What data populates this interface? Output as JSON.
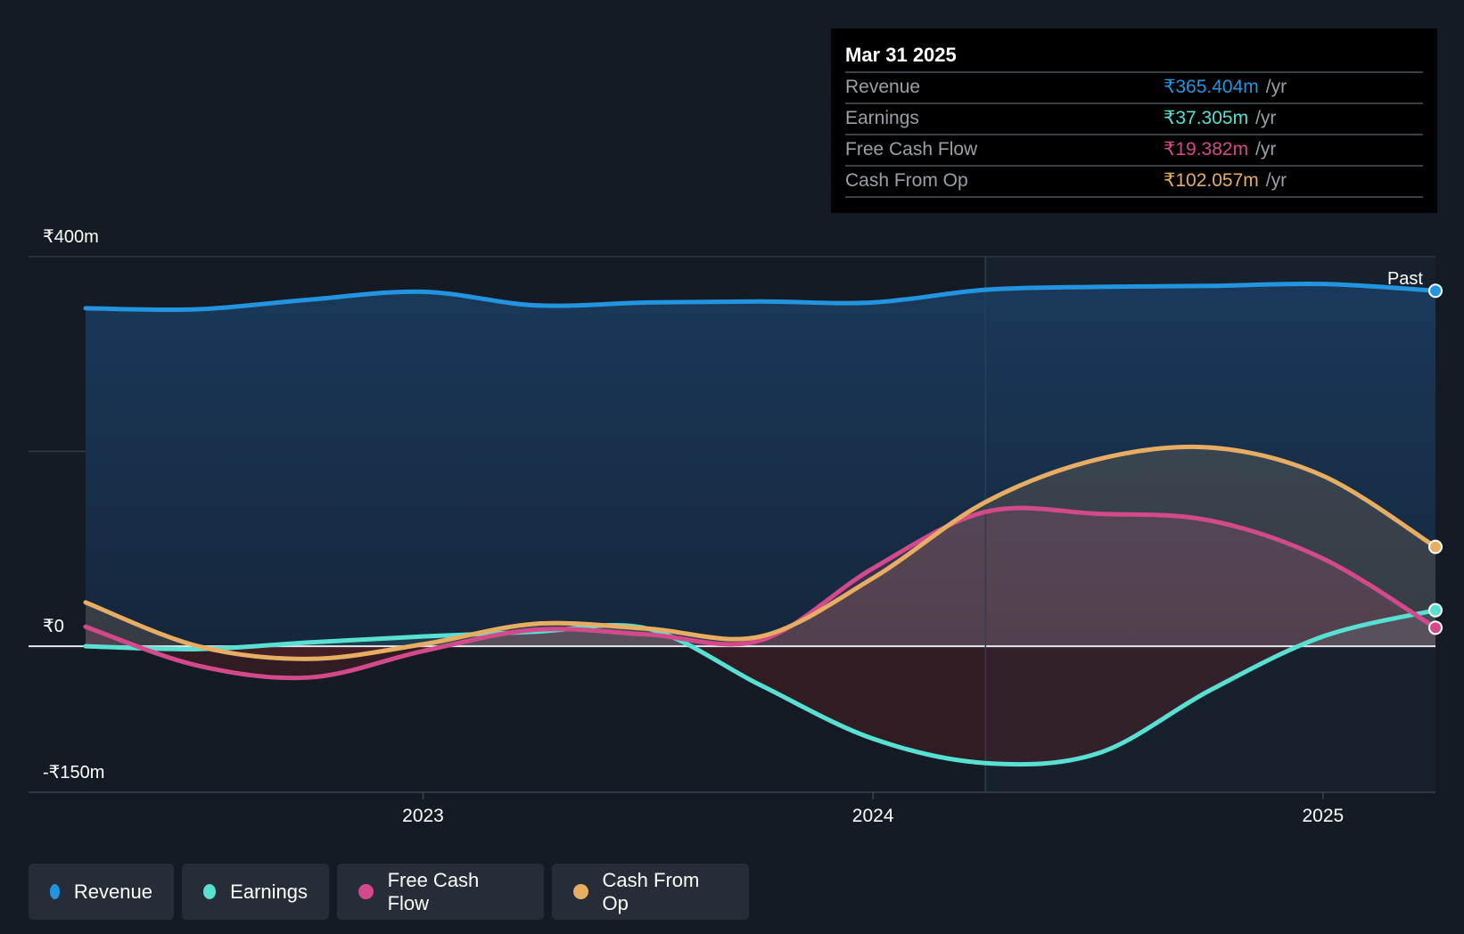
{
  "chart_data": {
    "type": "line",
    "x": [
      2022.25,
      2022.5,
      2022.75,
      2023.0,
      2023.25,
      2023.5,
      2023.75,
      2024.0,
      2024.25,
      2024.5,
      2024.75,
      2025.0,
      2025.25
    ],
    "series": [
      {
        "name": "Revenue",
        "color": "#2394df",
        "values": [
          347,
          346,
          356,
          364,
          350,
          353,
          354,
          353,
          366,
          369,
          370,
          372,
          365
        ]
      },
      {
        "name": "Earnings",
        "color": "#58e0d3",
        "values": [
          0,
          -3,
          4,
          10,
          15,
          18,
          -40,
          -95,
          -120,
          -110,
          -45,
          10,
          37
        ]
      },
      {
        "name": "Free Cash Flow",
        "color": "#d34a8c",
        "values": [
          20,
          -20,
          -32,
          -5,
          17,
          12,
          6,
          80,
          138,
          136,
          129,
          90,
          19
        ]
      },
      {
        "name": "Cash From Op",
        "color": "#e7ad63",
        "values": [
          45,
          0,
          -13,
          2,
          23,
          18,
          10,
          70,
          148,
          192,
          204,
          175,
          102
        ]
      }
    ],
    "ylim": [
      -150,
      400
    ],
    "y_ticks": [
      {
        "value": 400,
        "label": "₹400m"
      },
      {
        "value": 0,
        "label": "₹0"
      },
      {
        "value": -150,
        "label": "-₹150m"
      }
    ],
    "x_ticks": [
      {
        "value": 2023.0,
        "label": "2023"
      },
      {
        "value": 2024.0,
        "label": "2024"
      },
      {
        "value": 2025.0,
        "label": "2025"
      }
    ],
    "past_label": "Past",
    "past_start": 2024.25,
    "grid": true,
    "legend_position": "bottom-left"
  },
  "tooltip": {
    "date": "Mar 31 2025",
    "rows": [
      {
        "label": "Revenue",
        "value": "₹365.404m",
        "unit": "/yr",
        "color": "#2394df"
      },
      {
        "label": "Earnings",
        "value": "₹37.305m",
        "unit": "/yr",
        "color": "#58e0d3"
      },
      {
        "label": "Free Cash Flow",
        "value": "₹19.382m",
        "unit": "/yr",
        "color": "#d34a8c"
      },
      {
        "label": "Cash From Op",
        "value": "₹102.057m",
        "unit": "/yr",
        "color": "#e7ad63"
      }
    ]
  },
  "legend": [
    {
      "label": "Revenue",
      "color": "#2394df"
    },
    {
      "label": "Earnings",
      "color": "#58e0d3"
    },
    {
      "label": "Free Cash Flow",
      "color": "#d34a8c"
    },
    {
      "label": "Cash From Op",
      "color": "#e7ad63"
    }
  ]
}
